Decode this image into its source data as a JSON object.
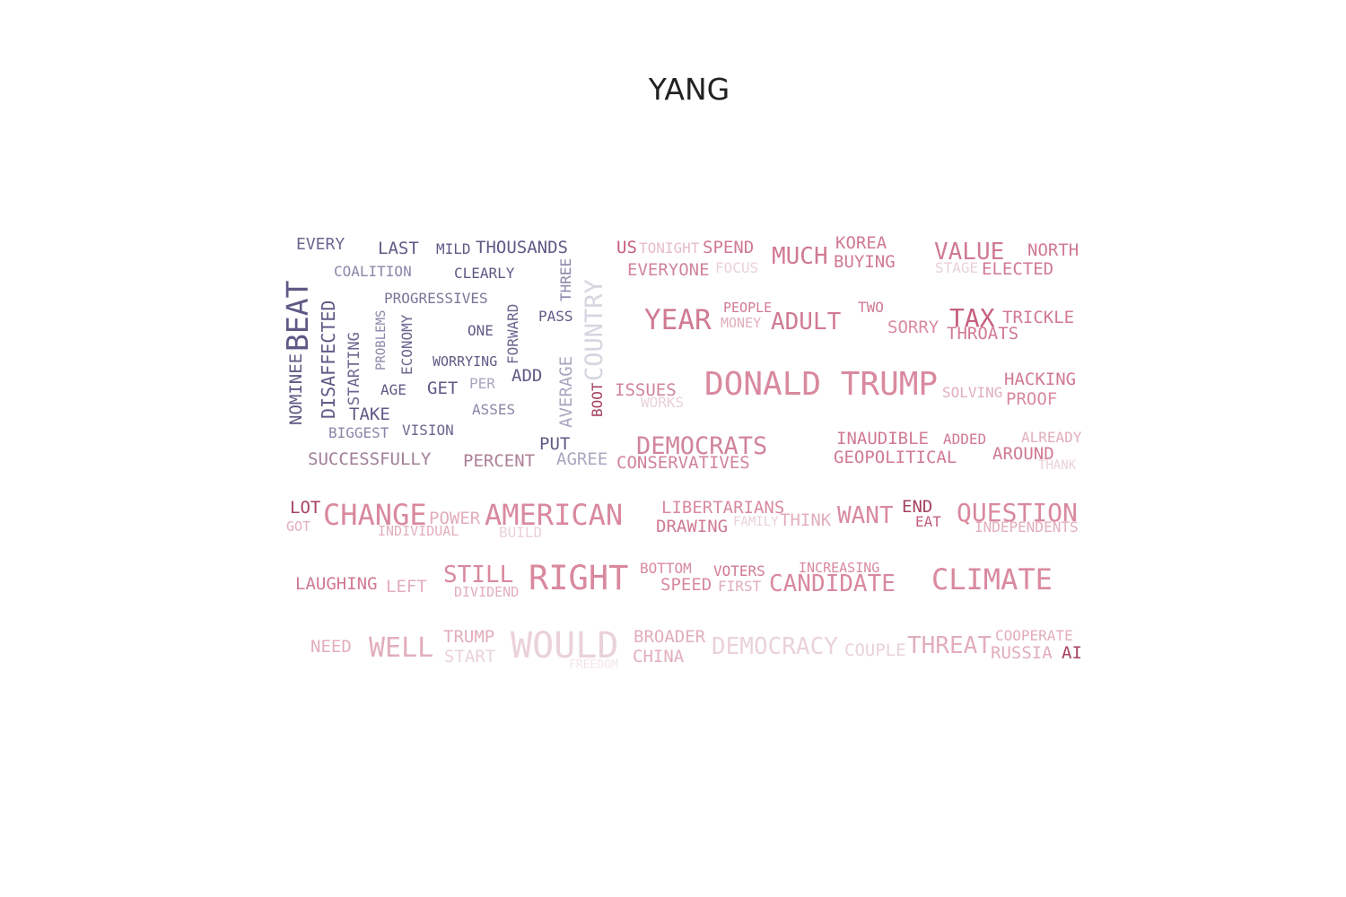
{
  "title": "YANG",
  "words": [
    {
      "text": "EVERY",
      "color": "#6b6790"
    },
    {
      "text": "LAST",
      "color": "#5e5a86"
    },
    {
      "text": "MILD",
      "color": "#5e5a86"
    },
    {
      "text": "THOUSANDS",
      "color": "#5e5a86"
    },
    {
      "text": "COALITION",
      "color": "#8a87a8"
    },
    {
      "text": "CLEARLY",
      "color": "#5e5a86"
    },
    {
      "text": "THREE",
      "color": "#8a87a8"
    },
    {
      "text": "COUNTRY",
      "color": "#d6d5e0"
    },
    {
      "text": "BEAT",
      "color": "#5e5a86"
    },
    {
      "text": "NOMINEE",
      "color": "#5e5a86"
    },
    {
      "text": "DISAFFECTED",
      "color": "#5e5a86"
    },
    {
      "text": "STARTING",
      "color": "#6b6790"
    },
    {
      "text": "PROBLEMS",
      "color": "#8a87a8"
    },
    {
      "text": "ECONOMY",
      "color": "#6b6790"
    },
    {
      "text": "PROGRESSIVES",
      "color": "#7a7699"
    },
    {
      "text": "FORWARD",
      "color": "#6b6790"
    },
    {
      "text": "PASS",
      "color": "#5e5a86"
    },
    {
      "text": "ONE",
      "color": "#5e5a86"
    },
    {
      "text": "WORRYING",
      "color": "#5e5a86"
    },
    {
      "text": "ADD",
      "color": "#5e5a86"
    },
    {
      "text": "AVERAGE",
      "color": "#a9a6c0"
    },
    {
      "text": "AGE",
      "color": "#5e5a86"
    },
    {
      "text": "GET",
      "color": "#5e5a86"
    },
    {
      "text": "PER",
      "color": "#a9a6c0"
    },
    {
      "text": "TAKE",
      "color": "#5e5a86"
    },
    {
      "text": "ASSES",
      "color": "#8a87a8"
    },
    {
      "text": "BIGGEST",
      "color": "#8a87a8"
    },
    {
      "text": "VISION",
      "color": "#6b6790"
    },
    {
      "text": "PUT",
      "color": "#5e5a86"
    },
    {
      "text": "BOOT",
      "color": "#a5415e"
    },
    {
      "text": "SUCCESSFULLY",
      "color": "#a07f99"
    },
    {
      "text": "PERCENT",
      "color": "#ad7f97"
    },
    {
      "text": "AGREE",
      "color": "#a9a6c0"
    },
    {
      "text": "US",
      "color": "#c65f7c"
    },
    {
      "text": "TONIGHT",
      "color": "#e6bcc7"
    },
    {
      "text": "SPEND",
      "color": "#d07a92"
    },
    {
      "text": "EVERYONE",
      "color": "#d0849a"
    },
    {
      "text": "FOCUS",
      "color": "#ead2d9"
    },
    {
      "text": "MUCH",
      "color": "#d07a92"
    },
    {
      "text": "KOREA",
      "color": "#d07a92"
    },
    {
      "text": "BUYING",
      "color": "#d07a92"
    },
    {
      "text": "VALUE",
      "color": "#d07a92"
    },
    {
      "text": "NORTH",
      "color": "#d07a92"
    },
    {
      "text": "STAGE",
      "color": "#ead2d9"
    },
    {
      "text": "ELECTED",
      "color": "#d07a92"
    },
    {
      "text": "YEAR",
      "color": "#d07a92"
    },
    {
      "text": "PEOPLE",
      "color": "#d07a92"
    },
    {
      "text": "MONEY",
      "color": "#e2aebb"
    },
    {
      "text": "ADULT",
      "color": "#d07a92"
    },
    {
      "text": "TWO",
      "color": "#d07a92"
    },
    {
      "text": "SORRY",
      "color": "#d9899e"
    },
    {
      "text": "TAX",
      "color": "#c65f7c"
    },
    {
      "text": "TRICKLE",
      "color": "#d07a92"
    },
    {
      "text": "THROATS",
      "color": "#d07a92"
    },
    {
      "text": "DONALD TRUMP",
      "color": "#d9899e"
    },
    {
      "text": "ISSUES",
      "color": "#d0849a"
    },
    {
      "text": "WORKS",
      "color": "#ead2d9"
    },
    {
      "text": "SOLVING",
      "color": "#e2aebb"
    },
    {
      "text": "HACKING",
      "color": "#d07a92"
    },
    {
      "text": "PROOF",
      "color": "#d9899e"
    },
    {
      "text": "DEMOCRATS",
      "color": "#d0849a"
    },
    {
      "text": "CONSERVATIVES",
      "color": "#d0849a"
    },
    {
      "text": "INAUDIBLE",
      "color": "#d07a92"
    },
    {
      "text": "ADDED",
      "color": "#d07a92"
    },
    {
      "text": "ALREADY",
      "color": "#e2aebb"
    },
    {
      "text": "GEOPOLITICAL",
      "color": "#d07a92"
    },
    {
      "text": "AROUND",
      "color": "#d07a92"
    },
    {
      "text": "THANK",
      "color": "#ead2d9"
    },
    {
      "text": "LOT",
      "color": "#a5415e"
    },
    {
      "text": "GOT",
      "color": "#e2aebb"
    },
    {
      "text": "CHANGE",
      "color": "#d9899e"
    },
    {
      "text": "POWER",
      "color": "#e2aebb"
    },
    {
      "text": "INDIVIDUAL",
      "color": "#e2aebb"
    },
    {
      "text": "AMERICAN",
      "color": "#d9899e"
    },
    {
      "text": "BUILD",
      "color": "#ead2d9"
    },
    {
      "text": "LIBERTARIANS",
      "color": "#d9899e"
    },
    {
      "text": "DRAWING",
      "color": "#d07a92"
    },
    {
      "text": "FAMILY",
      "color": "#ead2d9"
    },
    {
      "text": "THINK",
      "color": "#e2aebb"
    },
    {
      "text": "WANT",
      "color": "#d9899e"
    },
    {
      "text": "END",
      "color": "#a5415e"
    },
    {
      "text": "EAT",
      "color": "#c65f7c"
    },
    {
      "text": "QUESTION",
      "color": "#d9899e"
    },
    {
      "text": "INDEPENDENTS",
      "color": "#e2aebb"
    },
    {
      "text": "LAUGHING",
      "color": "#d07a92"
    },
    {
      "text": "LEFT",
      "color": "#e2aebb"
    },
    {
      "text": "STILL",
      "color": "#d9899e"
    },
    {
      "text": "DIVIDEND",
      "color": "#e2aebb"
    },
    {
      "text": "RIGHT",
      "color": "#d9899e"
    },
    {
      "text": "BOTTOM",
      "color": "#d9899e"
    },
    {
      "text": "SPEED",
      "color": "#d9899e"
    },
    {
      "text": "VOTERS",
      "color": "#d07a92"
    },
    {
      "text": "FIRST",
      "color": "#e2aebb"
    },
    {
      "text": "INCREASING",
      "color": "#d9899e"
    },
    {
      "text": "CANDIDATE",
      "color": "#d9899e"
    },
    {
      "text": "CLIMATE",
      "color": "#d9899e"
    },
    {
      "text": "NEED",
      "color": "#e2aebb"
    },
    {
      "text": "WELL",
      "color": "#e2aebb"
    },
    {
      "text": "TRUMP",
      "color": "#e2aebb"
    },
    {
      "text": "START",
      "color": "#ead2d9"
    },
    {
      "text": "WOULD",
      "color": "#ead2d9"
    },
    {
      "text": "FREEDOM",
      "color": "#f3e6ea"
    },
    {
      "text": "BROADER",
      "color": "#e2aebb"
    },
    {
      "text": "CHINA",
      "color": "#e2aebb"
    },
    {
      "text": "DEMOCRACY",
      "color": "#ead2d9"
    },
    {
      "text": "COUPLE",
      "color": "#ead2d9"
    },
    {
      "text": "THREAT",
      "color": "#e2aebb"
    },
    {
      "text": "COOPERATE",
      "color": "#e2aebb"
    },
    {
      "text": "RUSSIA",
      "color": "#e2aebb"
    },
    {
      "text": "AI",
      "color": "#a5415e"
    }
  ]
}
